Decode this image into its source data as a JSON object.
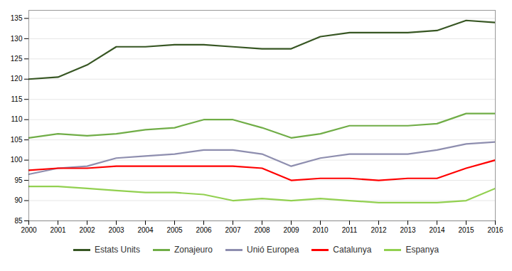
{
  "chart_data": {
    "type": "line",
    "x": [
      2000,
      2001,
      2002,
      2003,
      2004,
      2005,
      2006,
      2007,
      2008,
      2009,
      2010,
      2011,
      2012,
      2013,
      2014,
      2015,
      2016
    ],
    "series": [
      {
        "name": "Estats Units",
        "color": "#375623",
        "values": [
          120.0,
          120.5,
          123.5,
          128.0,
          128.0,
          128.5,
          128.5,
          128.0,
          127.5,
          127.5,
          130.5,
          131.5,
          131.5,
          131.5,
          132.0,
          134.5,
          134.0
        ]
      },
      {
        "name": "Zonajeuro",
        "color": "#70AD47",
        "values": [
          105.5,
          106.5,
          106.0,
          106.5,
          107.5,
          108.0,
          110.0,
          110.0,
          108.0,
          105.5,
          106.5,
          108.5,
          108.5,
          108.5,
          109.0,
          111.5,
          111.5
        ]
      },
      {
        "name": "Unió Europea",
        "color": "#8E8EAF",
        "values": [
          96.5,
          98.0,
          98.5,
          100.5,
          101.0,
          101.5,
          102.5,
          102.5,
          101.5,
          98.5,
          100.5,
          101.5,
          101.5,
          101.5,
          102.5,
          104.0,
          104.5
        ]
      },
      {
        "name": "Catalunya",
        "color": "#FF0000",
        "values": [
          97.5,
          98.0,
          98.0,
          98.5,
          98.5,
          98.5,
          98.5,
          98.5,
          98.0,
          95.0,
          95.5,
          95.5,
          95.0,
          95.5,
          95.5,
          98.0,
          100.0
        ]
      },
      {
        "name": "Espanya",
        "color": "#92D050",
        "values": [
          93.5,
          93.5,
          93.0,
          92.5,
          92.0,
          92.0,
          91.5,
          90.0,
          90.5,
          90.0,
          90.5,
          90.0,
          89.5,
          89.5,
          89.5,
          90.0,
          93.0
        ]
      }
    ],
    "xlim": [
      2000,
      2016
    ],
    "xticks": [
      2000,
      2001,
      2002,
      2003,
      2004,
      2005,
      2006,
      2007,
      2008,
      2009,
      2010,
      2011,
      2012,
      2013,
      2014,
      2015,
      2016
    ],
    "ylim": [
      85,
      137
    ],
    "yticks": [
      85,
      90,
      95,
      100,
      105,
      110,
      115,
      120,
      125,
      130,
      135
    ],
    "grid": true,
    "legend": "bottom"
  }
}
